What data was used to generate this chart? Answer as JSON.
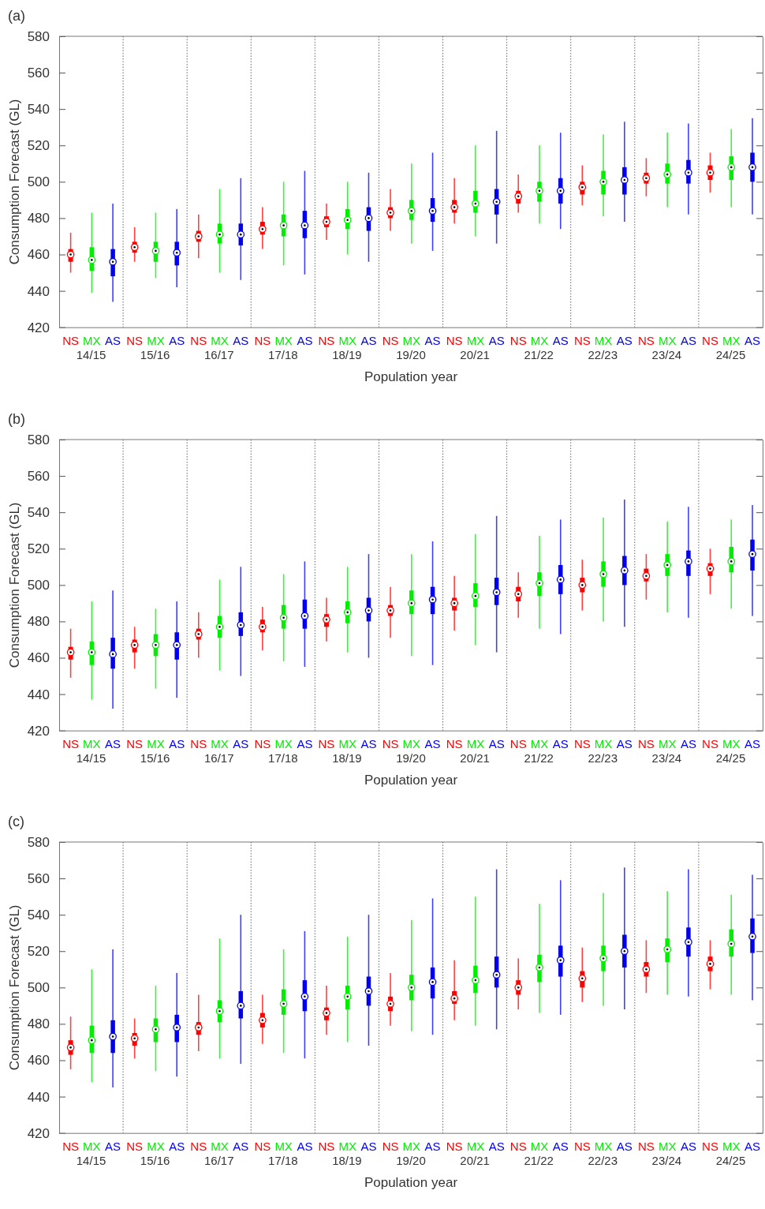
{
  "chart_data": [
    {
      "type": "box",
      "title": "(a)",
      "xlabel": "Population year",
      "ylabel": "Consumption Forecast (GL)",
      "categories": [
        "14/15",
        "15/16",
        "16/17",
        "17/18",
        "18/19",
        "19/20",
        "20/21",
        "21/22",
        "22/23",
        "23/24",
        "24/25"
      ],
      "ylim": [
        420,
        580
      ],
      "yticks": [
        420,
        440,
        460,
        480,
        500,
        520,
        540,
        560,
        580
      ],
      "grid": false,
      "legend": false,
      "series": [
        {
          "name": "NS",
          "color": "#ff0000",
          "boxes": [
            {
              "low": 450,
              "q1": 456,
              "median": 460,
              "q3": 463,
              "high": 472
            },
            {
              "low": 456,
              "q1": 461,
              "median": 464,
              "q3": 467,
              "high": 475
            },
            {
              "low": 458,
              "q1": 467,
              "median": 470,
              "q3": 473,
              "high": 482
            },
            {
              "low": 463,
              "q1": 471,
              "median": 474,
              "q3": 478,
              "high": 486
            },
            {
              "low": 468,
              "q1": 475,
              "median": 478,
              "q3": 481,
              "high": 488
            },
            {
              "low": 473,
              "q1": 480,
              "median": 483,
              "q3": 486,
              "high": 496
            },
            {
              "low": 477,
              "q1": 483,
              "median": 486,
              "q3": 490,
              "high": 502
            },
            {
              "low": 483,
              "q1": 488,
              "median": 492,
              "q3": 495,
              "high": 504
            },
            {
              "low": 487,
              "q1": 493,
              "median": 497,
              "q3": 500,
              "high": 509
            },
            {
              "low": 492,
              "q1": 499,
              "median": 502,
              "q3": 505,
              "high": 513
            },
            {
              "low": 494,
              "q1": 501,
              "median": 505,
              "q3": 509,
              "high": 516
            }
          ]
        },
        {
          "name": "MX",
          "color": "#00ee00",
          "boxes": [
            {
              "low": 439,
              "q1": 451,
              "median": 457,
              "q3": 464,
              "high": 483
            },
            {
              "low": 447,
              "q1": 456,
              "median": 462,
              "q3": 467,
              "high": 483
            },
            {
              "low": 450,
              "q1": 466,
              "median": 471,
              "q3": 477,
              "high": 496
            },
            {
              "low": 454,
              "q1": 470,
              "median": 476,
              "q3": 482,
              "high": 500
            },
            {
              "low": 460,
              "q1": 474,
              "median": 479,
              "q3": 485,
              "high": 500
            },
            {
              "low": 466,
              "q1": 479,
              "median": 484,
              "q3": 490,
              "high": 510
            },
            {
              "low": 470,
              "q1": 483,
              "median": 488,
              "q3": 495,
              "high": 520
            },
            {
              "low": 477,
              "q1": 489,
              "median": 495,
              "q3": 500,
              "high": 520
            },
            {
              "low": 481,
              "q1": 493,
              "median": 500,
              "q3": 506,
              "high": 526
            },
            {
              "low": 486,
              "q1": 499,
              "median": 504,
              "q3": 510,
              "high": 527
            },
            {
              "low": 486,
              "q1": 501,
              "median": 508,
              "q3": 514,
              "high": 529
            }
          ]
        },
        {
          "name": "AS",
          "color": "#0000ee",
          "boxes": [
            {
              "low": 434,
              "q1": 448,
              "median": 456,
              "q3": 463,
              "high": 488
            },
            {
              "low": 442,
              "q1": 454,
              "median": 461,
              "q3": 467,
              "high": 485
            },
            {
              "low": 446,
              "q1": 465,
              "median": 471,
              "q3": 477,
              "high": 502
            },
            {
              "low": 449,
              "q1": 469,
              "median": 476,
              "q3": 484,
              "high": 506
            },
            {
              "low": 456,
              "q1": 473,
              "median": 480,
              "q3": 486,
              "high": 505
            },
            {
              "low": 462,
              "q1": 478,
              "median": 484,
              "q3": 491,
              "high": 516
            },
            {
              "low": 466,
              "q1": 482,
              "median": 489,
              "q3": 496,
              "high": 528
            },
            {
              "low": 474,
              "q1": 488,
              "median": 495,
              "q3": 502,
              "high": 527
            },
            {
              "low": 478,
              "q1": 493,
              "median": 501,
              "q3": 508,
              "high": 533
            },
            {
              "low": 482,
              "q1": 499,
              "median": 505,
              "q3": 512,
              "high": 532
            },
            {
              "low": 482,
              "q1": 500,
              "median": 508,
              "q3": 516,
              "high": 535
            }
          ]
        }
      ]
    },
    {
      "type": "box",
      "title": "(b)",
      "xlabel": "Population year",
      "ylabel": "Consumption Forecast (GL)",
      "categories": [
        "14/15",
        "15/16",
        "16/17",
        "17/18",
        "18/19",
        "19/20",
        "20/21",
        "21/22",
        "22/23",
        "23/24",
        "24/25"
      ],
      "ylim": [
        420,
        580
      ],
      "yticks": [
        420,
        440,
        460,
        480,
        500,
        520,
        540,
        560,
        580
      ],
      "grid": false,
      "legend": false,
      "series": [
        {
          "name": "NS",
          "color": "#ff0000",
          "boxes": [
            {
              "low": 449,
              "q1": 459,
              "median": 463,
              "q3": 466,
              "high": 476
            },
            {
              "low": 454,
              "q1": 463,
              "median": 467,
              "q3": 470,
              "high": 477
            },
            {
              "low": 460,
              "q1": 470,
              "median": 473,
              "q3": 476,
              "high": 485
            },
            {
              "low": 464,
              "q1": 474,
              "median": 477,
              "q3": 481,
              "high": 488
            },
            {
              "low": 469,
              "q1": 477,
              "median": 481,
              "q3": 484,
              "high": 493
            },
            {
              "low": 471,
              "q1": 483,
              "median": 486,
              "q3": 489,
              "high": 499
            },
            {
              "low": 475,
              "q1": 486,
              "median": 490,
              "q3": 493,
              "high": 505
            },
            {
              "low": 482,
              "q1": 491,
              "median": 495,
              "q3": 499,
              "high": 507
            },
            {
              "low": 486,
              "q1": 496,
              "median": 500,
              "q3": 504,
              "high": 514
            },
            {
              "low": 492,
              "q1": 502,
              "median": 505,
              "q3": 509,
              "high": 517
            },
            {
              "low": 495,
              "q1": 505,
              "median": 509,
              "q3": 512,
              "high": 520
            }
          ]
        },
        {
          "name": "MX",
          "color": "#00ee00",
          "boxes": [
            {
              "low": 437,
              "q1": 456,
              "median": 463,
              "q3": 469,
              "high": 491
            },
            {
              "low": 443,
              "q1": 461,
              "median": 467,
              "q3": 473,
              "high": 487
            },
            {
              "low": 453,
              "q1": 471,
              "median": 477,
              "q3": 483,
              "high": 503
            },
            {
              "low": 458,
              "q1": 476,
              "median": 482,
              "q3": 489,
              "high": 506
            },
            {
              "low": 463,
              "q1": 479,
              "median": 485,
              "q3": 491,
              "high": 510
            },
            {
              "low": 461,
              "q1": 484,
              "median": 490,
              "q3": 497,
              "high": 517
            },
            {
              "low": 467,
              "q1": 488,
              "median": 494,
              "q3": 501,
              "high": 528
            },
            {
              "low": 476,
              "q1": 494,
              "median": 501,
              "q3": 507,
              "high": 527
            },
            {
              "low": 480,
              "q1": 499,
              "median": 506,
              "q3": 513,
              "high": 537
            },
            {
              "low": 485,
              "q1": 505,
              "median": 511,
              "q3": 517,
              "high": 535
            },
            {
              "low": 487,
              "q1": 507,
              "median": 513,
              "q3": 521,
              "high": 536
            }
          ]
        },
        {
          "name": "AS",
          "color": "#0000ee",
          "boxes": [
            {
              "low": 432,
              "q1": 454,
              "median": 462,
              "q3": 471,
              "high": 497
            },
            {
              "low": 438,
              "q1": 459,
              "median": 467,
              "q3": 474,
              "high": 491
            },
            {
              "low": 450,
              "q1": 472,
              "median": 478,
              "q3": 485,
              "high": 510
            },
            {
              "low": 455,
              "q1": 476,
              "median": 483,
              "q3": 492,
              "high": 513
            },
            {
              "low": 460,
              "q1": 480,
              "median": 486,
              "q3": 493,
              "high": 517
            },
            {
              "low": 456,
              "q1": 484,
              "median": 492,
              "q3": 499,
              "high": 524
            },
            {
              "low": 463,
              "q1": 489,
              "median": 496,
              "q3": 504,
              "high": 538
            },
            {
              "low": 473,
              "q1": 495,
              "median": 503,
              "q3": 511,
              "high": 536
            },
            {
              "low": 477,
              "q1": 500,
              "median": 508,
              "q3": 516,
              "high": 547
            },
            {
              "low": 482,
              "q1": 505,
              "median": 513,
              "q3": 519,
              "high": 543
            },
            {
              "low": 483,
              "q1": 508,
              "median": 517,
              "q3": 525,
              "high": 544
            }
          ]
        }
      ]
    },
    {
      "type": "box",
      "title": "(c)",
      "xlabel": "Population year",
      "ylabel": "Consumption Forecast (GL)",
      "categories": [
        "14/15",
        "15/16",
        "16/17",
        "17/18",
        "18/19",
        "19/20",
        "20/21",
        "21/22",
        "22/23",
        "23/24",
        "24/25"
      ],
      "ylim": [
        420,
        580
      ],
      "yticks": [
        420,
        440,
        460,
        480,
        500,
        520,
        540,
        560,
        580
      ],
      "grid": false,
      "legend": false,
      "series": [
        {
          "name": "NS",
          "color": "#ff0000",
          "boxes": [
            {
              "low": 455,
              "q1": 463,
              "median": 467,
              "q3": 471,
              "high": 484
            },
            {
              "low": 461,
              "q1": 468,
              "median": 472,
              "q3": 475,
              "high": 483
            },
            {
              "low": 465,
              "q1": 474,
              "median": 478,
              "q3": 481,
              "high": 496
            },
            {
              "low": 469,
              "q1": 478,
              "median": 482,
              "q3": 486,
              "high": 496
            },
            {
              "low": 474,
              "q1": 482,
              "median": 486,
              "q3": 489,
              "high": 501
            },
            {
              "low": 479,
              "q1": 487,
              "median": 491,
              "q3": 495,
              "high": 508
            },
            {
              "low": 482,
              "q1": 491,
              "median": 494,
              "q3": 498,
              "high": 515
            },
            {
              "low": 488,
              "q1": 496,
              "median": 500,
              "q3": 504,
              "high": 516
            },
            {
              "low": 492,
              "q1": 500,
              "median": 505,
              "q3": 509,
              "high": 522
            },
            {
              "low": 497,
              "q1": 506,
              "median": 510,
              "q3": 514,
              "high": 526
            },
            {
              "low": 499,
              "q1": 509,
              "median": 513,
              "q3": 517,
              "high": 526
            }
          ]
        },
        {
          "name": "MX",
          "color": "#00ee00",
          "boxes": [
            {
              "low": 448,
              "q1": 464,
              "median": 471,
              "q3": 479,
              "high": 510
            },
            {
              "low": 454,
              "q1": 470,
              "median": 477,
              "q3": 483,
              "high": 501
            },
            {
              "low": 461,
              "q1": 481,
              "median": 487,
              "q3": 493,
              "high": 527
            },
            {
              "low": 464,
              "q1": 485,
              "median": 491,
              "q3": 499,
              "high": 521
            },
            {
              "low": 470,
              "q1": 488,
              "median": 495,
              "q3": 501,
              "high": 528
            },
            {
              "low": 476,
              "q1": 493,
              "median": 500,
              "q3": 507,
              "high": 537
            },
            {
              "low": 479,
              "q1": 497,
              "median": 504,
              "q3": 512,
              "high": 550
            },
            {
              "low": 486,
              "q1": 503,
              "median": 511,
              "q3": 518,
              "high": 546
            },
            {
              "low": 490,
              "q1": 509,
              "median": 516,
              "q3": 523,
              "high": 552
            },
            {
              "low": 496,
              "q1": 514,
              "median": 521,
              "q3": 527,
              "high": 553
            },
            {
              "low": 496,
              "q1": 517,
              "median": 524,
              "q3": 532,
              "high": 551
            }
          ]
        },
        {
          "name": "AS",
          "color": "#0000ee",
          "boxes": [
            {
              "low": 445,
              "q1": 464,
              "median": 473,
              "q3": 482,
              "high": 521
            },
            {
              "low": 451,
              "q1": 470,
              "median": 478,
              "q3": 485,
              "high": 508
            },
            {
              "low": 458,
              "q1": 483,
              "median": 490,
              "q3": 498,
              "high": 540
            },
            {
              "low": 461,
              "q1": 487,
              "median": 495,
              "q3": 504,
              "high": 531
            },
            {
              "low": 468,
              "q1": 490,
              "median": 498,
              "q3": 506,
              "high": 540
            },
            {
              "low": 474,
              "q1": 494,
              "median": 503,
              "q3": 511,
              "high": 549
            },
            {
              "low": 477,
              "q1": 500,
              "median": 507,
              "q3": 517,
              "high": 565
            },
            {
              "low": 485,
              "q1": 506,
              "median": 515,
              "q3": 523,
              "high": 559
            },
            {
              "low": 488,
              "q1": 511,
              "median": 520,
              "q3": 529,
              "high": 566
            },
            {
              "low": 495,
              "q1": 517,
              "median": 525,
              "q3": 533,
              "high": 565
            },
            {
              "low": 493,
              "q1": 519,
              "median": 528,
              "q3": 538,
              "high": 562
            }
          ]
        }
      ]
    }
  ]
}
